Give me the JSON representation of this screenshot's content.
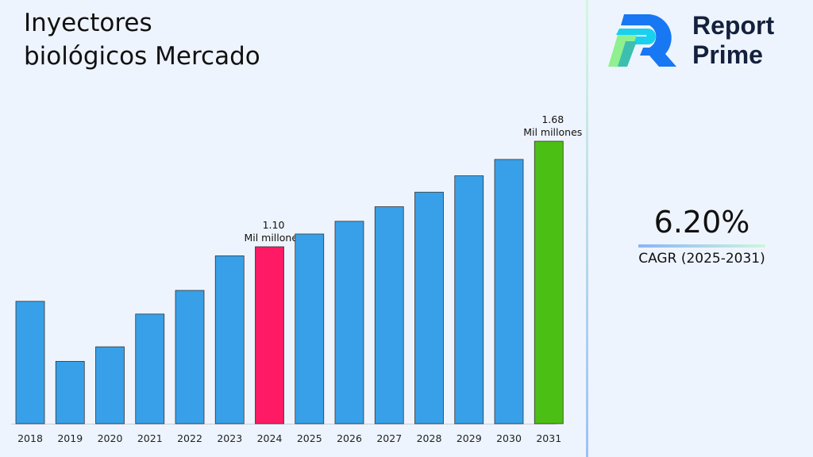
{
  "title_line1": "Inyectores",
  "title_line2": "biológicos Mercado",
  "logo": {
    "text_line1": "Report",
    "text_line2": "Prime"
  },
  "cagr": {
    "value": "6.20%",
    "label": "CAGR (2025-2031)"
  },
  "chart_data": {
    "type": "bar",
    "categories": [
      "2018",
      "2019",
      "2020",
      "2021",
      "2022",
      "2023",
      "2024",
      "2025",
      "2026",
      "2027",
      "2028",
      "2029",
      "2030",
      "2031"
    ],
    "values": [
      0.8,
      0.47,
      0.55,
      0.73,
      0.86,
      1.05,
      1.1,
      1.17,
      1.24,
      1.32,
      1.4,
      1.49,
      1.58,
      1.68
    ],
    "colors": [
      "#38a0e8",
      "#38a0e8",
      "#38a0e8",
      "#38a0e8",
      "#38a0e8",
      "#38a0e8",
      "#ff1a66",
      "#38a0e8",
      "#38a0e8",
      "#38a0e8",
      "#38a0e8",
      "#38a0e8",
      "#38a0e8",
      "#4cbf14"
    ],
    "annotations": [
      {
        "category": "2024",
        "value": "1.10",
        "unit": "Mil millones"
      },
      {
        "category": "2031",
        "value": "1.68",
        "unit": "Mil millones"
      }
    ],
    "grid": false
  }
}
